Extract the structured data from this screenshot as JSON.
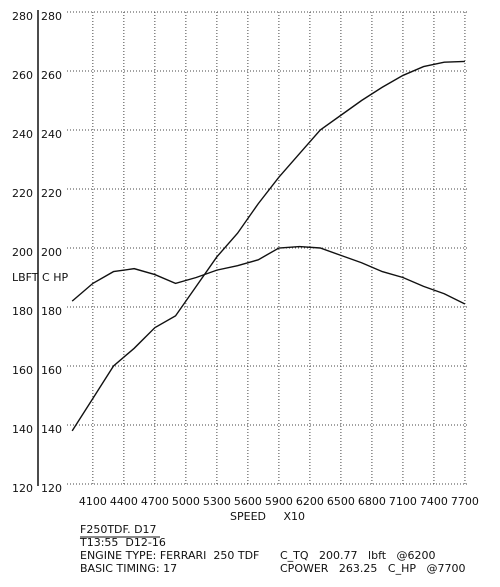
{
  "chart_data": {
    "type": "line",
    "ylabel": "LBFT C HP",
    "xlabel": "SPEED     X10",
    "x": [
      3900,
      4100,
      4300,
      4500,
      4700,
      4900,
      5100,
      5300,
      5500,
      5700,
      5900,
      6100,
      6300,
      6500,
      6700,
      6900,
      7100,
      7300,
      7500,
      7700
    ],
    "series": [
      {
        "name": "C_TQ",
        "color": "#111111",
        "values": [
          182,
          188,
          192,
          193,
          191,
          188,
          190,
          192.5,
          194,
          196,
          200,
          200.5,
          200,
          197.5,
          195,
          192,
          190,
          187,
          184.5,
          181
        ]
      },
      {
        "name": "CPOWER",
        "color": "#111111",
        "values": [
          138,
          149,
          160,
          166,
          173,
          177,
          187,
          197,
          205,
          215,
          224,
          232,
          240,
          245,
          250,
          254.5,
          258.5,
          261.5,
          263,
          263.25
        ]
      }
    ],
    "xlim": [
      3850,
      7720
    ],
    "ylim": [
      120,
      280
    ],
    "xticks": [
      4100,
      4400,
      4700,
      5000,
      5300,
      5600,
      5900,
      6200,
      6500,
      6800,
      7100,
      7400,
      7700
    ],
    "yticks": [
      120,
      140,
      160,
      180,
      200,
      220,
      240,
      260,
      280
    ],
    "grid": true,
    "notes": [
      "F250TDF. D17",
      "T13:55  D12-16",
      "ENGINE TYPE: FERRARI  250 TDF",
      "BASIC TIMING: 17"
    ],
    "results": [
      "C_TQ   200.77   lbft   @6200",
      "CPOWER   263.25   C_HP   @7700"
    ]
  }
}
